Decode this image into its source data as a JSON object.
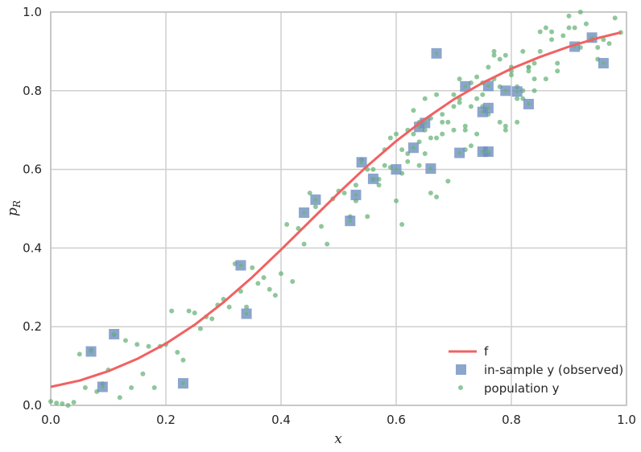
{
  "chart_data": {
    "type": "scatter",
    "title": "",
    "xlabel": "x",
    "ylabel": "p_R",
    "xlim": [
      0.0,
      1.0
    ],
    "ylim": [
      0.0,
      1.0
    ],
    "xticks": [
      "0.0",
      "0.2",
      "0.4",
      "0.6",
      "0.8",
      "1.0"
    ],
    "yticks": [
      "0.0",
      "0.2",
      "0.4",
      "0.6",
      "0.8",
      "1.0"
    ],
    "grid": true,
    "legend_position": "bottom-right",
    "colors": {
      "f": "#f16161",
      "in_sample": "#6f8fbf",
      "population": "#6ab47a",
      "grid": "#cfcfcf",
      "frame": "#bdbdbd"
    },
    "series": [
      {
        "name": "f",
        "kind": "line",
        "x": [
          0.0,
          0.05,
          0.1,
          0.15,
          0.2,
          0.25,
          0.3,
          0.35,
          0.4,
          0.45,
          0.5,
          0.55,
          0.6,
          0.65,
          0.7,
          0.75,
          0.8,
          0.85,
          0.9,
          0.95,
          0.99
        ],
        "y": [
          0.047,
          0.063,
          0.087,
          0.118,
          0.157,
          0.205,
          0.262,
          0.326,
          0.396,
          0.468,
          0.54,
          0.609,
          0.672,
          0.728,
          0.778,
          0.82,
          0.856,
          0.886,
          0.912,
          0.934,
          0.948
        ]
      },
      {
        "name": "in-sample y (observed)",
        "kind": "square",
        "x": [
          0.07,
          0.09,
          0.11,
          0.23,
          0.33,
          0.34,
          0.44,
          0.46,
          0.52,
          0.53,
          0.54,
          0.56,
          0.6,
          0.63,
          0.64,
          0.65,
          0.66,
          0.67,
          0.71,
          0.72,
          0.75,
          0.75,
          0.76,
          0.76,
          0.76,
          0.79,
          0.81,
          0.83,
          0.91,
          0.94,
          0.96
        ],
        "y": [
          0.137,
          0.047,
          0.181,
          0.056,
          0.356,
          0.233,
          0.49,
          0.523,
          0.469,
          0.535,
          0.618,
          0.576,
          0.6,
          0.655,
          0.708,
          0.718,
          0.602,
          0.895,
          0.642,
          0.811,
          0.746,
          0.645,
          0.756,
          0.812,
          0.645,
          0.8,
          0.798,
          0.766,
          0.912,
          0.935,
          0.87
        ]
      },
      {
        "name": "population y",
        "kind": "dot",
        "x": [
          0.0,
          0.01,
          0.02,
          0.03,
          0.04,
          0.05,
          0.06,
          0.07,
          0.08,
          0.09,
          0.1,
          0.11,
          0.12,
          0.13,
          0.14,
          0.15,
          0.16,
          0.17,
          0.18,
          0.19,
          0.2,
          0.21,
          0.22,
          0.23,
          0.24,
          0.25,
          0.26,
          0.27,
          0.28,
          0.29,
          0.3,
          0.31,
          0.32,
          0.33,
          0.34,
          0.35,
          0.36,
          0.37,
          0.38,
          0.39,
          0.4,
          0.41,
          0.42,
          0.43,
          0.44,
          0.45,
          0.46,
          0.47,
          0.48,
          0.49,
          0.5,
          0.51,
          0.52,
          0.53,
          0.54,
          0.55,
          0.56,
          0.57,
          0.58,
          0.59,
          0.6,
          0.61,
          0.62,
          0.63,
          0.64,
          0.65,
          0.66,
          0.67,
          0.68,
          0.69,
          0.7,
          0.71,
          0.72,
          0.73,
          0.74,
          0.75,
          0.76,
          0.77,
          0.78,
          0.79,
          0.8,
          0.81,
          0.82,
          0.83,
          0.84,
          0.85,
          0.86,
          0.87,
          0.88,
          0.89,
          0.9,
          0.91,
          0.92,
          0.93,
          0.94,
          0.95,
          0.96,
          0.97,
          0.98,
          0.99,
          0.6,
          0.61,
          0.62,
          0.63,
          0.64,
          0.65,
          0.66,
          0.67,
          0.68,
          0.7,
          0.71,
          0.72,
          0.73,
          0.74,
          0.75,
          0.76,
          0.77,
          0.78,
          0.79,
          0.8,
          0.81,
          0.82,
          0.83,
          0.84,
          0.85,
          0.55,
          0.57,
          0.58,
          0.59,
          0.62,
          0.66,
          0.68,
          0.69,
          0.72,
          0.74,
          0.77,
          0.8,
          0.82,
          0.86,
          0.9,
          0.61,
          0.64,
          0.67,
          0.7,
          0.73,
          0.76,
          0.79,
          0.84,
          0.88,
          0.92,
          0.53,
          0.56,
          0.65,
          0.71,
          0.75,
          0.78,
          0.81,
          0.83,
          0.87,
          0.95
        ],
        "y": [
          0.01,
          0.006,
          0.004,
          0.0,
          0.008,
          0.13,
          0.045,
          0.14,
          0.035,
          0.055,
          0.09,
          0.18,
          0.02,
          0.165,
          0.045,
          0.155,
          0.08,
          0.15,
          0.045,
          0.15,
          0.155,
          0.24,
          0.135,
          0.115,
          0.24,
          0.235,
          0.195,
          0.225,
          0.22,
          0.255,
          0.27,
          0.25,
          0.36,
          0.29,
          0.25,
          0.35,
          0.31,
          0.325,
          0.295,
          0.28,
          0.335,
          0.46,
          0.315,
          0.45,
          0.41,
          0.54,
          0.505,
          0.455,
          0.41,
          0.525,
          0.545,
          0.54,
          0.48,
          0.56,
          0.625,
          0.48,
          0.575,
          0.575,
          0.61,
          0.605,
          0.52,
          0.46,
          0.7,
          0.69,
          0.61,
          0.64,
          0.68,
          0.68,
          0.69,
          0.72,
          0.76,
          0.78,
          0.71,
          0.82,
          0.835,
          0.82,
          0.86,
          0.9,
          0.88,
          0.89,
          0.85,
          0.78,
          0.8,
          0.85,
          0.87,
          0.9,
          0.96,
          0.93,
          0.87,
          0.94,
          0.96,
          0.96,
          1.0,
          0.97,
          0.93,
          0.88,
          0.93,
          0.92,
          0.985,
          0.948,
          0.69,
          0.65,
          0.62,
          0.75,
          0.72,
          0.78,
          0.73,
          0.79,
          0.74,
          0.79,
          0.83,
          0.7,
          0.76,
          0.78,
          0.76,
          0.74,
          0.83,
          0.72,
          0.71,
          0.84,
          0.81,
          0.9,
          0.86,
          0.83,
          0.95,
          0.6,
          0.56,
          0.65,
          0.68,
          0.64,
          0.54,
          0.72,
          0.57,
          0.65,
          0.69,
          0.89,
          0.86,
          0.78,
          0.83,
          0.99,
          0.59,
          0.67,
          0.53,
          0.7,
          0.66,
          0.64,
          0.7,
          0.8,
          0.85,
          0.91,
          0.52,
          0.6,
          0.7,
          0.77,
          0.79,
          0.81,
          0.72,
          0.86,
          0.95,
          0.91
        ]
      }
    ]
  }
}
